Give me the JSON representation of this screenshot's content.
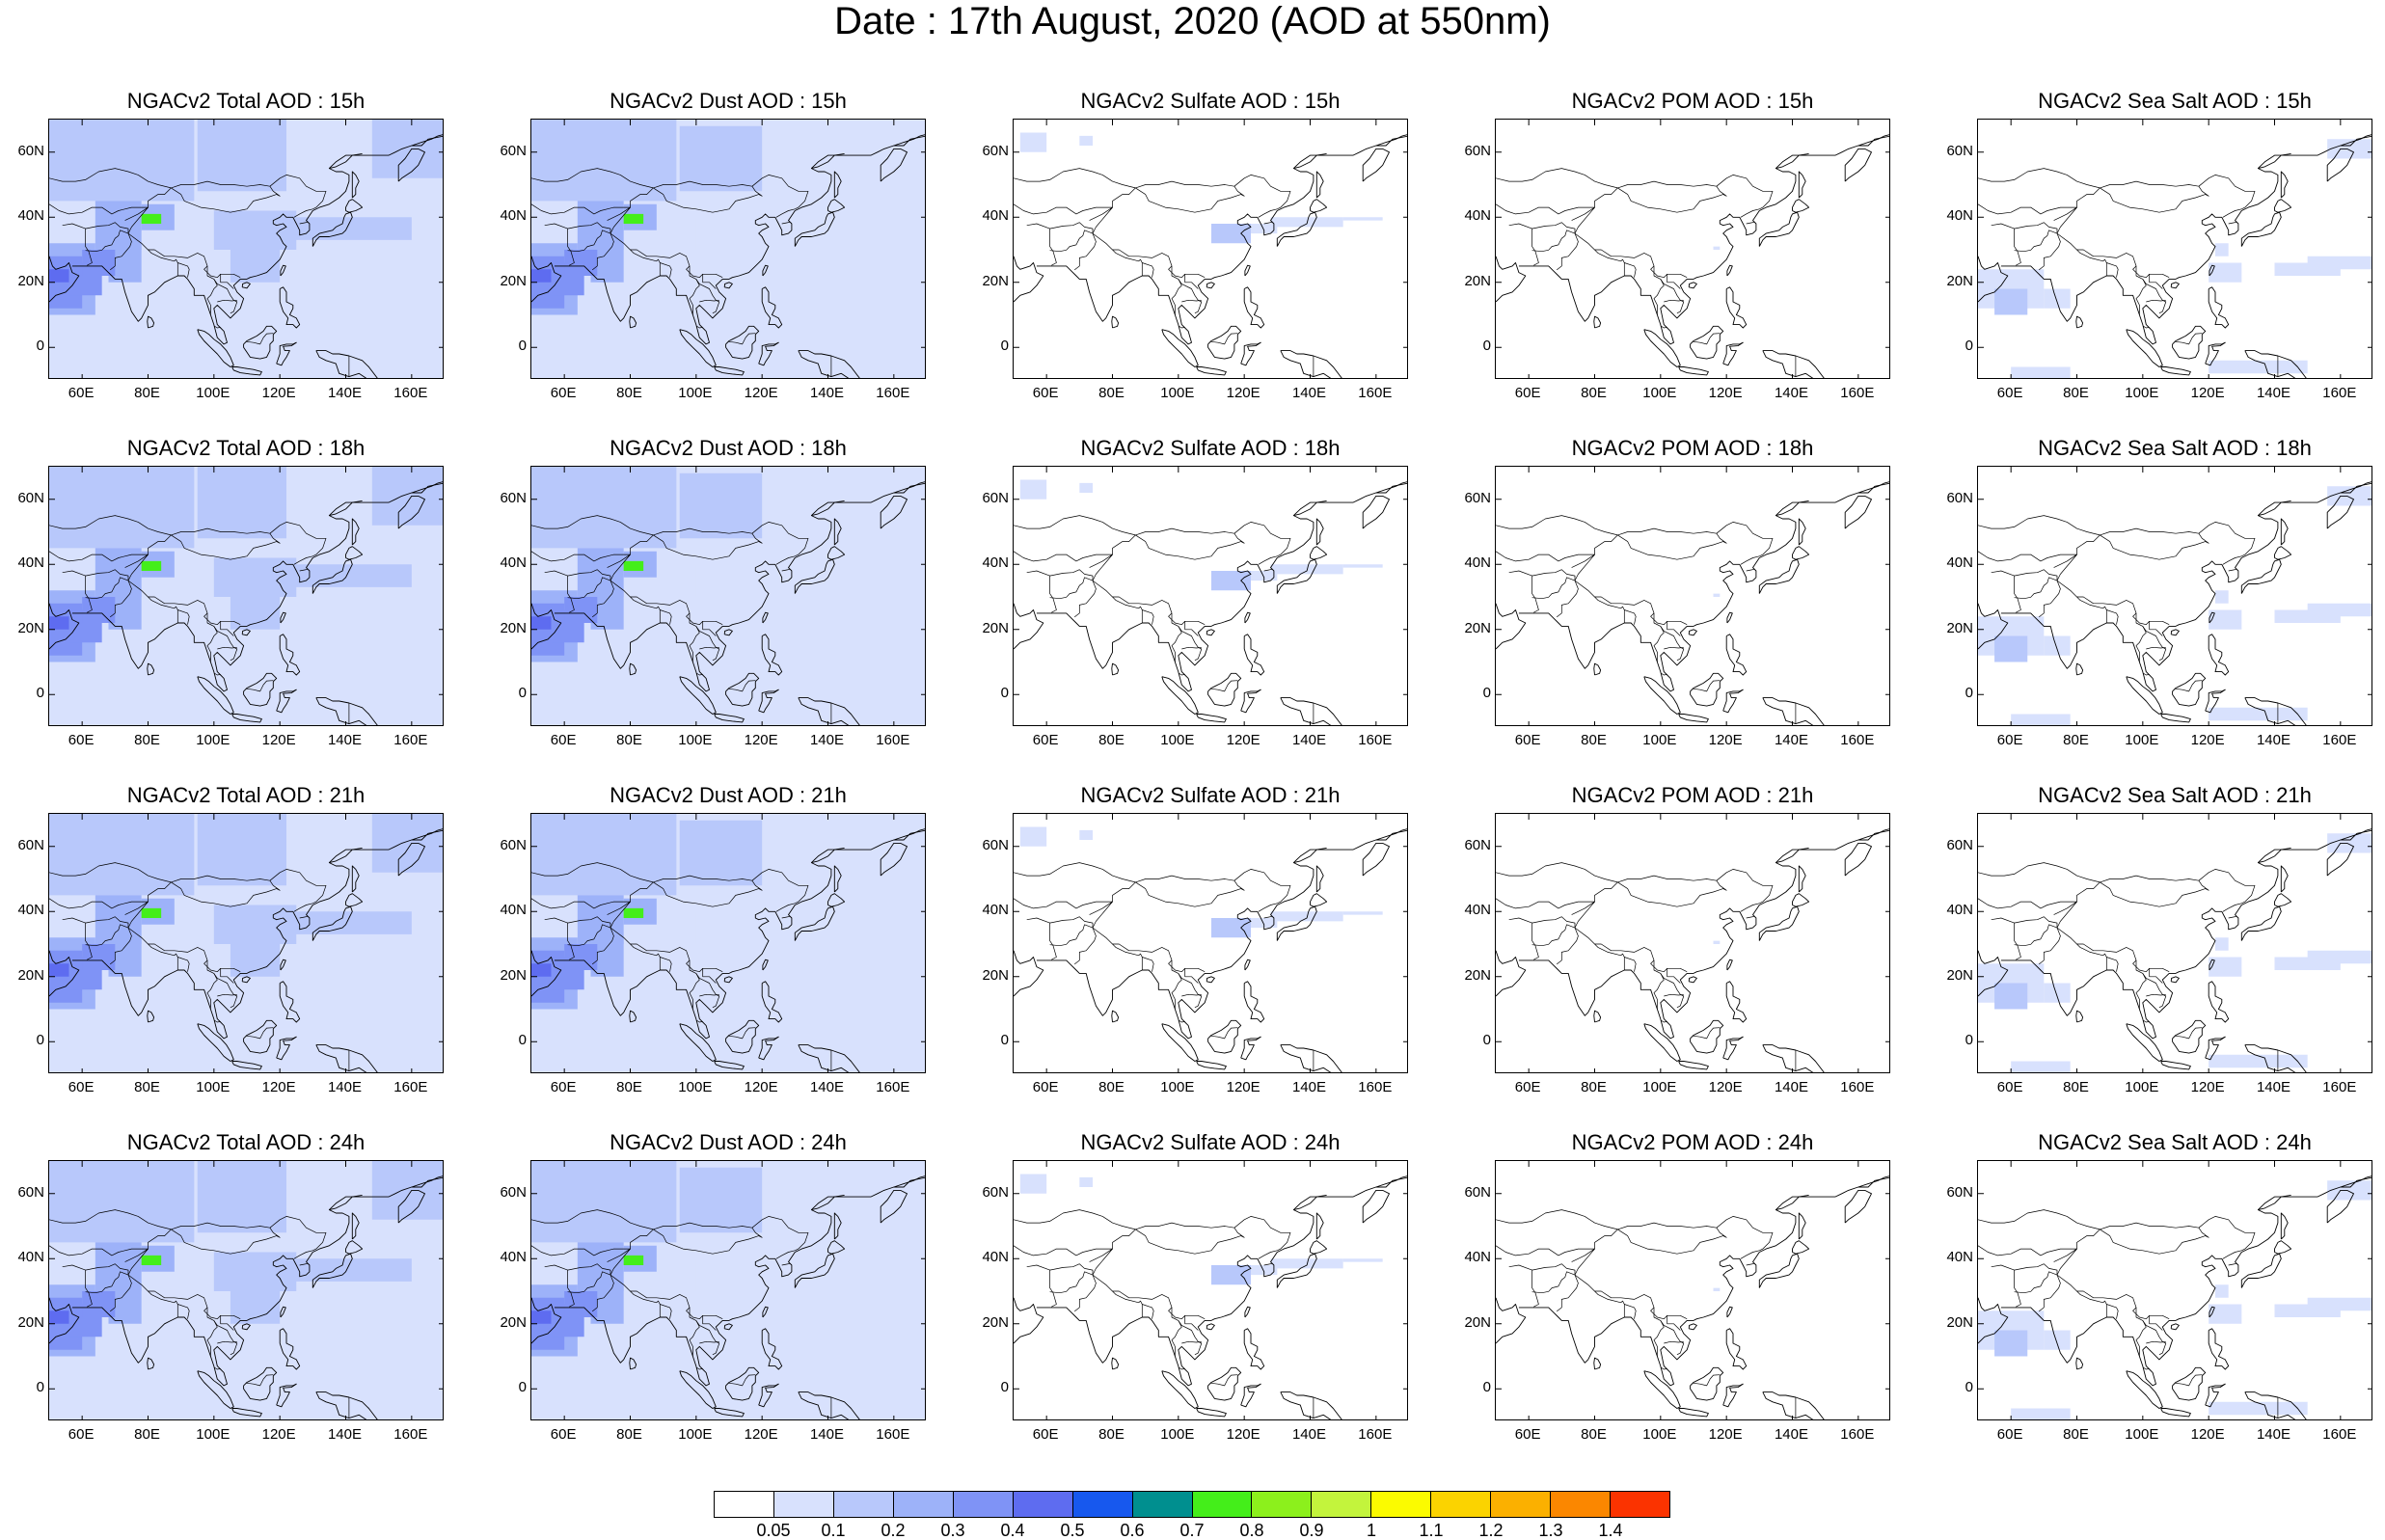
{
  "title": "Date : 17th August, 2020 (AOD at 550nm)",
  "axes": {
    "lat_ticks": [
      "60N",
      "40N",
      "20N",
      "0"
    ],
    "lat_values": [
      60,
      40,
      20,
      0
    ],
    "lon_ticks": [
      "60E",
      "80E",
      "100E",
      "120E",
      "140E",
      "160E"
    ],
    "lon_values": [
      60,
      80,
      100,
      120,
      140,
      160
    ],
    "lon_range": [
      50,
      170
    ],
    "lat_range": [
      -10,
      70
    ]
  },
  "panels": [
    {
      "title": "NGACv2 Total AOD : 15h",
      "species": "total",
      "hour": "15h"
    },
    {
      "title": "NGACv2 Dust AOD : 15h",
      "species": "dust",
      "hour": "15h"
    },
    {
      "title": "NGACv2 Sulfate AOD : 15h",
      "species": "sulfate",
      "hour": "15h"
    },
    {
      "title": "NGACv2 POM AOD : 15h",
      "species": "pom",
      "hour": "15h"
    },
    {
      "title": "NGACv2 Sea Salt AOD : 15h",
      "species": "seasalt",
      "hour": "15h"
    },
    {
      "title": "NGACv2 Total AOD : 18h",
      "species": "total",
      "hour": "18h"
    },
    {
      "title": "NGACv2 Dust AOD : 18h",
      "species": "dust",
      "hour": "18h"
    },
    {
      "title": "NGACv2 Sulfate AOD : 18h",
      "species": "sulfate",
      "hour": "18h"
    },
    {
      "title": "NGACv2 POM AOD : 18h",
      "species": "pom",
      "hour": "18h"
    },
    {
      "title": "NGACv2 Sea Salt AOD : 18h",
      "species": "seasalt",
      "hour": "18h"
    },
    {
      "title": "NGACv2 Total AOD : 21h",
      "species": "total",
      "hour": "21h"
    },
    {
      "title": "NGACv2 Dust AOD : 21h",
      "species": "dust",
      "hour": "21h"
    },
    {
      "title": "NGACv2 Sulfate AOD : 21h",
      "species": "sulfate",
      "hour": "21h"
    },
    {
      "title": "NGACv2 POM AOD : 21h",
      "species": "pom",
      "hour": "21h"
    },
    {
      "title": "NGACv2 Sea Salt AOD : 21h",
      "species": "seasalt",
      "hour": "21h"
    },
    {
      "title": "NGACv2 Total AOD : 24h",
      "species": "total",
      "hour": "24h"
    },
    {
      "title": "NGACv2 Dust AOD : 24h",
      "species": "dust",
      "hour": "24h"
    },
    {
      "title": "NGACv2 Sulfate AOD : 24h",
      "species": "sulfate",
      "hour": "24h"
    },
    {
      "title": "NGACv2 POM AOD : 24h",
      "species": "pom",
      "hour": "24h"
    },
    {
      "title": "NGACv2 Sea Salt  AOD : 24h",
      "species": "seasalt",
      "hour": "24h"
    }
  ],
  "colorbar": {
    "colors": [
      "#ffffff",
      "#d8e1fd",
      "#b8c8fb",
      "#9db2f9",
      "#7f93f6",
      "#5e6cf0",
      "#1758ee",
      "#008f8f",
      "#44ee1a",
      "#8cf01c",
      "#c3f43c",
      "#fbfb00",
      "#fbd300",
      "#fbb000",
      "#fb8700",
      "#fb3300"
    ],
    "labels": [
      "0.05",
      "0.1",
      "0.2",
      "0.3",
      "0.4",
      "0.5",
      "0.6",
      "0.7",
      "0.8",
      "0.9",
      "1",
      "1.1",
      "1.2",
      "1.3",
      "1.4"
    ]
  }
}
